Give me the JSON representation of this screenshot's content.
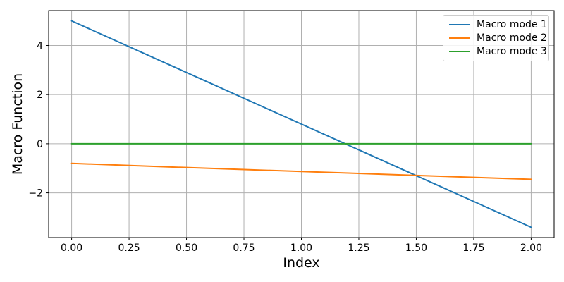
{
  "chart_data": {
    "type": "line",
    "title": "",
    "xlabel": "Index",
    "ylabel": "Macro Function",
    "x": [
      0.0,
      0.5,
      1.0,
      1.5,
      2.0
    ],
    "series": [
      {
        "name": "Macro mode 1",
        "color": "#1f77b4",
        "values": [
          5.0,
          2.9,
          0.8,
          -1.3,
          -3.4
        ]
      },
      {
        "name": "Macro mode 2",
        "color": "#ff7f0e",
        "values": [
          -0.8,
          -0.97,
          -1.13,
          -1.29,
          -1.45
        ]
      },
      {
        "name": "Macro mode 3",
        "color": "#2ca02c",
        "values": [
          0.0,
          0.0,
          0.0,
          0.0,
          0.0
        ]
      }
    ],
    "xlim": [
      -0.1,
      2.1
    ],
    "ylim": [
      -3.82,
      5.42
    ],
    "xticks": {
      "values": [
        0,
        0.25,
        0.5,
        0.75,
        1.0,
        1.25,
        1.5,
        1.75,
        2.0
      ],
      "labels": [
        "0.00",
        "0.25",
        "0.50",
        "0.75",
        "1.00",
        "1.25",
        "1.50",
        "1.75",
        "2.00"
      ]
    },
    "yticks": {
      "values": [
        -2,
        0,
        2,
        4
      ],
      "labels": [
        "−2",
        "0",
        "2",
        "4"
      ]
    },
    "grid": true,
    "legend_position": "upper right",
    "colors": {
      "grid": "#b0b0b0",
      "axis": "#000000",
      "text": "#000000",
      "legend_border": "#cccccc",
      "legend_bg": "#ffffff",
      "background": "#ffffff"
    }
  }
}
